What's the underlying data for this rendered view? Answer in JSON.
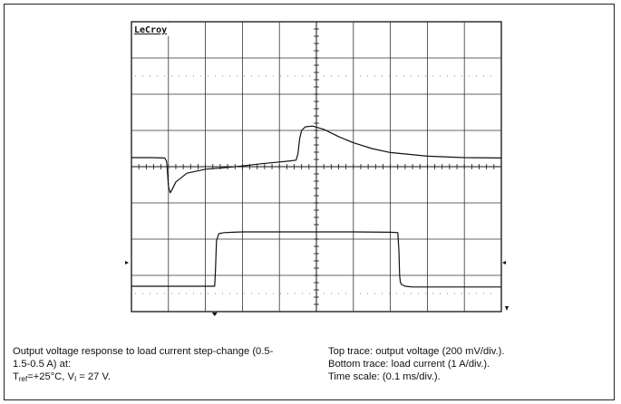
{
  "chart_data": {
    "type": "line",
    "instrument_label": "LeCroy",
    "grid": {
      "divisions_x": 10,
      "divisions_y": 8,
      "dotted_inner_lines": true,
      "center_ticks": true
    },
    "series": [
      {
        "role": "top-trace",
        "x": [
          0,
          0.5,
          0.9,
          0.95,
          0.98,
          1.0,
          1.05,
          1.1,
          1.2,
          1.5,
          2.0,
          2.5,
          3.0,
          3.5,
          4.0,
          4.3,
          4.45,
          4.5,
          4.55,
          4.6,
          4.7,
          4.9,
          5.2,
          5.6,
          6.0,
          6.5,
          7.0,
          8.0,
          9.0,
          10.0
        ],
        "y": [
          0.25,
          0.25,
          0.24,
          0.15,
          -0.25,
          -0.55,
          -0.72,
          -0.63,
          -0.42,
          -0.18,
          -0.07,
          -0.03,
          0.02,
          0.08,
          0.13,
          0.16,
          0.18,
          0.35,
          0.78,
          1.0,
          1.1,
          1.12,
          1.03,
          0.83,
          0.66,
          0.5,
          0.39,
          0.29,
          0.25,
          0.24
        ]
      },
      {
        "role": "bottom-trace",
        "x": [
          0,
          2.25,
          2.27,
          2.3,
          2.36,
          2.5,
          3.0,
          4.0,
          5.0,
          6.0,
          7.0,
          7.2,
          7.23,
          7.25,
          7.27,
          7.3,
          7.4,
          7.6,
          8.0,
          9.0,
          10.0
        ],
        "y": [
          -3.3,
          -3.3,
          -2.9,
          -2.05,
          -1.85,
          -1.82,
          -1.8,
          -1.8,
          -1.8,
          -1.8,
          -1.81,
          -1.82,
          -2.3,
          -3.0,
          -3.18,
          -3.25,
          -3.3,
          -3.32,
          -3.32,
          -3.32,
          -3.32
        ]
      }
    ],
    "xlim": [
      0,
      10
    ],
    "ylim": [
      -4,
      4
    ]
  },
  "caption": {
    "left_line1": "Output voltage response to load current step-change (0.5-",
    "left_line2": "1.5-0.5 A) at:",
    "left_line3_t": "T",
    "left_line3_t_sub": "ref",
    "left_line3_t_val": "=+25°C, V",
    "left_line3_v_sub": "I",
    "left_line3_v_val": " = 27 V.",
    "right_line1": "Top trace: output voltage (200 mV/div.).",
    "right_line2": "Bottom trace: load current (1 A/div.).",
    "right_line3": "Time scale: (0.1 ms/div.)."
  }
}
